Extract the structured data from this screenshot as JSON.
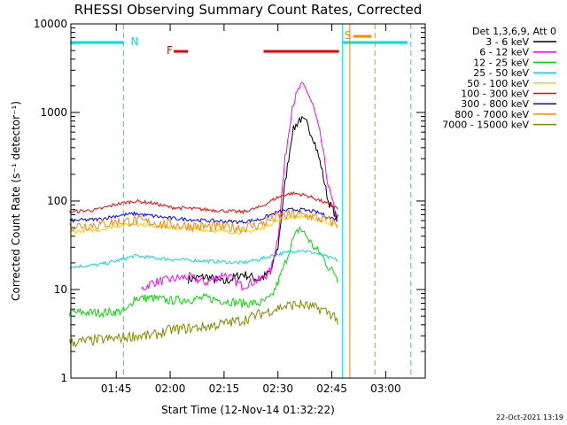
{
  "chart_data": {
    "type": "line",
    "title": "RHESSI Observing Summary Count Rates, Corrected",
    "xlabel": "Start Time (12-Nov-14 01:32:22)",
    "ylabel": "Corrected Count Rate (s⁻¹ detector⁻¹)",
    "ylog": true,
    "ylim": [
      1,
      10000
    ],
    "xlim": [
      "01:32:22",
      "03:11:00"
    ],
    "x_ticks": [
      "01:45",
      "02:00",
      "02:15",
      "02:30",
      "02:45",
      "03:00"
    ],
    "y_ticks": [
      "1",
      "10",
      "100",
      "1000",
      "10000"
    ],
    "legend_title": "Det 1,3,6,9, Att 0",
    "footer": "22-Oct-2021 13:19",
    "flags": {
      "night_label": "N",
      "flare_label": "F",
      "saa_label": "S"
    },
    "series": [
      {
        "name": "3 - 6 keV",
        "color": "#000000",
        "x": [
          "02:05",
          "02:10",
          "02:15",
          "02:20",
          "02:25",
          "02:28",
          "02:30",
          "02:32",
          "02:34",
          "02:36",
          "02:38",
          "02:40",
          "02:42",
          "02:44",
          "02:46",
          "02:47"
        ],
        "values": [
          13,
          14,
          12,
          15,
          13,
          16,
          30,
          160,
          600,
          850,
          750,
          500,
          250,
          100,
          70,
          60
        ]
      },
      {
        "name": "6 - 12 keV",
        "color": "#ff00ff",
        "x": [
          "01:52",
          "01:55",
          "02:00",
          "02:05",
          "02:10",
          "02:15",
          "02:20",
          "02:25",
          "02:28",
          "02:30",
          "02:32",
          "02:34",
          "02:36",
          "02:37",
          "02:38",
          "02:40",
          "02:42",
          "02:44",
          "02:46",
          "02:47"
        ],
        "values": [
          10,
          12,
          13,
          14,
          12,
          15,
          11,
          13,
          16,
          40,
          300,
          1200,
          1900,
          2000,
          1800,
          1100,
          500,
          150,
          70,
          50
        ]
      },
      {
        "name": "12 - 25 keV",
        "color": "#00dd00",
        "x": [
          "01:32",
          "01:40",
          "01:45",
          "01:48",
          "01:50",
          "01:55",
          "02:00",
          "02:10",
          "02:20",
          "02:25",
          "02:28",
          "02:30",
          "02:32",
          "02:34",
          "02:36",
          "02:38",
          "02:40",
          "02:42",
          "02:44",
          "02:46",
          "02:47"
        ],
        "values": [
          5.5,
          5.5,
          5.6,
          5.8,
          8,
          8,
          7.5,
          8,
          7,
          7,
          8,
          12,
          20,
          35,
          50,
          40,
          30,
          25,
          18,
          15,
          12
        ]
      },
      {
        "name": "25 - 50 keV",
        "color": "#00dddd",
        "x": [
          "01:32",
          "01:40",
          "01:45",
          "01:50",
          "01:55",
          "02:00",
          "02:10",
          "02:20",
          "02:25",
          "02:28",
          "02:30",
          "02:32",
          "02:34",
          "02:36",
          "02:38",
          "02:40",
          "02:42",
          "02:44",
          "02:46",
          "02:47"
        ],
        "values": [
          18,
          19,
          21,
          24,
          23,
          22,
          21,
          20,
          22,
          24,
          25,
          26,
          27,
          28,
          27,
          26,
          25,
          23,
          22,
          21
        ]
      },
      {
        "name": "50 - 100 keV",
        "color": "#ffcc00",
        "x": [
          "01:32",
          "01:40",
          "01:45",
          "01:50",
          "01:55",
          "02:00",
          "02:10",
          "02:20",
          "02:25",
          "02:28",
          "02:30",
          "02:32",
          "02:34",
          "02:36",
          "02:38",
          "02:40",
          "02:42",
          "02:44",
          "02:46",
          "02:47"
        ],
        "values": [
          45,
          47,
          52,
          55,
          53,
          50,
          47,
          44,
          48,
          55,
          60,
          64,
          66,
          67,
          66,
          64,
          60,
          57,
          54,
          52
        ]
      },
      {
        "name": "100 - 300 keV",
        "color": "#ff0000",
        "x": [
          "01:32",
          "01:40",
          "01:45",
          "01:50",
          "01:55",
          "02:00",
          "02:10",
          "02:20",
          "02:25",
          "02:28",
          "02:30",
          "02:32",
          "02:34",
          "02:36",
          "02:38",
          "02:40",
          "02:42",
          "02:44",
          "02:46",
          "02:47"
        ],
        "values": [
          75,
          80,
          92,
          100,
          95,
          85,
          80,
          75,
          85,
          100,
          110,
          118,
          122,
          120,
          115,
          108,
          100,
          92,
          85,
          80
        ]
      },
      {
        "name": "300 - 800 keV",
        "color": "#0000ff",
        "x": [
          "01:32",
          "01:40",
          "01:45",
          "01:50",
          "01:55",
          "02:00",
          "02:10",
          "02:20",
          "02:25",
          "02:28",
          "02:30",
          "02:32",
          "02:34",
          "02:36",
          "02:38",
          "02:40",
          "02:42",
          "02:44",
          "02:46",
          "02:47"
        ],
        "values": [
          60,
          62,
          68,
          72,
          68,
          64,
          60,
          58,
          62,
          70,
          75,
          78,
          80,
          80,
          78,
          76,
          72,
          66,
          62,
          60
        ]
      },
      {
        "name": "800 - 7000 keV",
        "color": "#ff8800",
        "x": [
          "01:32",
          "01:40",
          "01:45",
          "01:50",
          "01:55",
          "02:00",
          "02:10",
          "02:20",
          "02:25",
          "02:28",
          "02:30",
          "02:32",
          "02:34",
          "02:36",
          "02:38",
          "02:40",
          "02:42",
          "02:44",
          "02:46",
          "02:47"
        ],
        "values": [
          52,
          54,
          58,
          60,
          57,
          54,
          51,
          50,
          54,
          62,
          66,
          68,
          70,
          70,
          68,
          66,
          63,
          60,
          56,
          54
        ]
      },
      {
        "name": "7000 - 15000 keV",
        "color": "#888800",
        "x": [
          "01:32",
          "01:40",
          "01:45",
          "01:50",
          "01:55",
          "02:00",
          "02:10",
          "02:20",
          "02:25",
          "02:28",
          "02:30",
          "02:32",
          "02:34",
          "02:36",
          "02:38",
          "02:40",
          "02:42",
          "02:44",
          "02:46",
          "02:47"
        ],
        "values": [
          2.5,
          2.7,
          2.8,
          3,
          3,
          3.5,
          3.8,
          4.5,
          5.3,
          5.8,
          6.2,
          6.5,
          6.7,
          6.8,
          6.5,
          6.2,
          6,
          5.5,
          5,
          4
        ]
      }
    ]
  }
}
